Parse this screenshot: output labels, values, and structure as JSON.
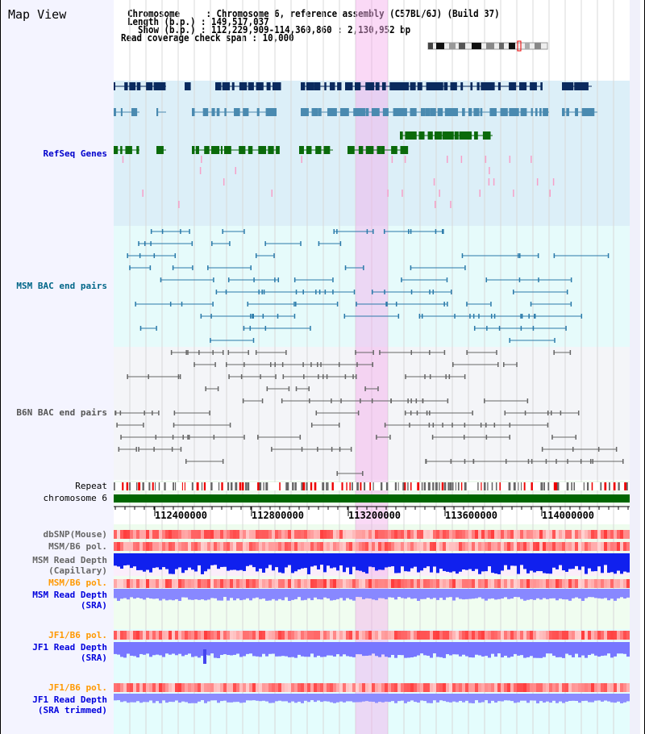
{
  "title": "Map View",
  "header": {
    "chromosome_label": "Chromosome     :",
    "chromosome": "Chromosome 6, reference assembly (C57BL/6J) (Build 37)",
    "length_label": "Length (b.p.) :",
    "length": "149,517,037",
    "show_label": "  Show (b.p.) :",
    "show": "112,229,909-114,360,860 : 2,130,952 bp",
    "span_label": "Read coverage check span :",
    "span": "10,000"
  },
  "tracks": {
    "refseq": "RefSeq Genes",
    "msm_bac": "MSM BAC end pairs",
    "b6n_bac": "B6N BAC end pairs",
    "repeat": "Repeat",
    "chromosome": "chromosome 6",
    "dbsnp": "dbSNP(Mouse)",
    "msm_pol1": "MSM/B6 pol.",
    "msm_depth_cap": "MSM Read Depth\n(Capillary)",
    "msm_pol2": "MSM/B6 pol.",
    "msm_depth_sra": "MSM Read Depth\n(SRA)",
    "jf1_pol1": "JF1/B6 pol.",
    "jf1_depth_sra": "JF1 Read Depth\n(SRA)",
    "jf1_pol2": "JF1/B6 pol.",
    "jf1_depth_trim": "JF1 Read Depth\n(SRA trimmed)"
  },
  "axis": {
    "ticks": [
      "112400000",
      "112800000",
      "113200000",
      "113600000",
      "114000000"
    ]
  },
  "colors": {
    "label_blue": "#0000cc",
    "label_teal": "#006688",
    "label_gray": "#555555",
    "label_orange": "#ff9900",
    "gene_navy": "#0a2a5e",
    "gene_teal": "#4a8ab0",
    "gene_green": "#0a6a0a"
  }
}
